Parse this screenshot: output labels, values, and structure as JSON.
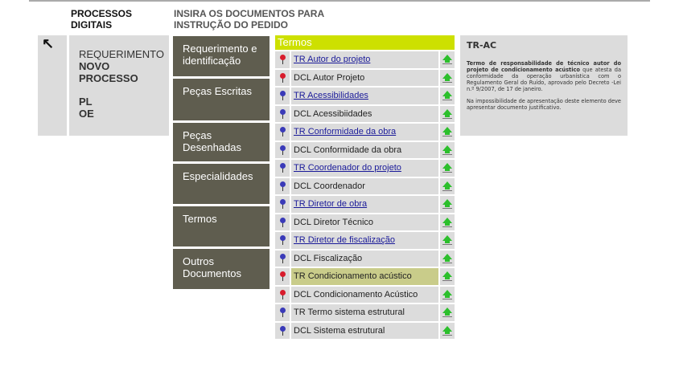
{
  "header": {
    "left": "PROCESSOS DIGITAIS",
    "right": "INSIRA OS DOCUMENTOS PARA INSTRUÇÃO DO PEDIDO"
  },
  "back_icon": "arrow-up-left-icon",
  "info": {
    "line1": "REQUERIMENTO",
    "line2": "NOVO PROCESSO",
    "line3": "PL",
    "line4": "OE"
  },
  "menu": [
    {
      "label": "Requerimento e identificação",
      "h": 50
    },
    {
      "label": "Peças Escritas",
      "h": 52
    },
    {
      "label": "Peças Desenhadas",
      "h": 48
    },
    {
      "label": "Especialidades",
      "h": 50
    },
    {
      "label": "Termos",
      "h": 50
    },
    {
      "label": "Outros Documentos",
      "h": 50
    }
  ],
  "list": {
    "title": "Termos",
    "items": [
      {
        "label": "TR Autor do projeto",
        "link": true,
        "pin": "red"
      },
      {
        "label": "DCL Autor Projeto",
        "link": false,
        "pin": "red"
      },
      {
        "label": "TR Acessibilidades",
        "link": true,
        "pin": "blue"
      },
      {
        "label": "DCL Acessibiidades",
        "link": false,
        "pin": "blue"
      },
      {
        "label": "TR Conformidade da obra",
        "link": true,
        "pin": "blue"
      },
      {
        "label": "DCL Conformidade da obra",
        "link": false,
        "pin": "blue"
      },
      {
        "label": "TR Coordenador do projeto",
        "link": true,
        "pin": "blue"
      },
      {
        "label": "DCL Coordenador",
        "link": false,
        "pin": "blue"
      },
      {
        "label": "TR Diretor de obra",
        "link": true,
        "pin": "blue"
      },
      {
        "label": "DCL Diretor Técnico",
        "link": false,
        "pin": "blue"
      },
      {
        "label": "TR Diretor de fiscalização",
        "link": true,
        "pin": "blue"
      },
      {
        "label": "DCL Fiscalização",
        "link": false,
        "pin": "blue"
      },
      {
        "label": "TR Condicionamento acústico",
        "link": false,
        "pin": "red",
        "selected": true
      },
      {
        "label": "DCL Condicionamento Acústico",
        "link": false,
        "pin": "red"
      },
      {
        "label": "TR Termo sistema estrutural",
        "link": false,
        "pin": "blue"
      },
      {
        "label": "DCL Sistema estrutural",
        "link": false,
        "pin": "blue"
      }
    ]
  },
  "colors": {
    "red": "#d81c2c",
    "blue": "#3a3ab8",
    "accent": "#cde000",
    "menu": "#5f5d4f"
  },
  "panel": {
    "title": "TR-AC",
    "bold": "Termo de responsabilidade de técnico autor do projeto de condicionamento acústico",
    "text": " que atesta da conformidade da operação urbanística com o Regulamento Geral do Ruído, aprovado pelo Decreto -Lei n.º 9/2007, de 17 de janeiro.",
    "note": "Na impossibilidade de apresentação deste elemento deve apresentar documento justificativo."
  }
}
